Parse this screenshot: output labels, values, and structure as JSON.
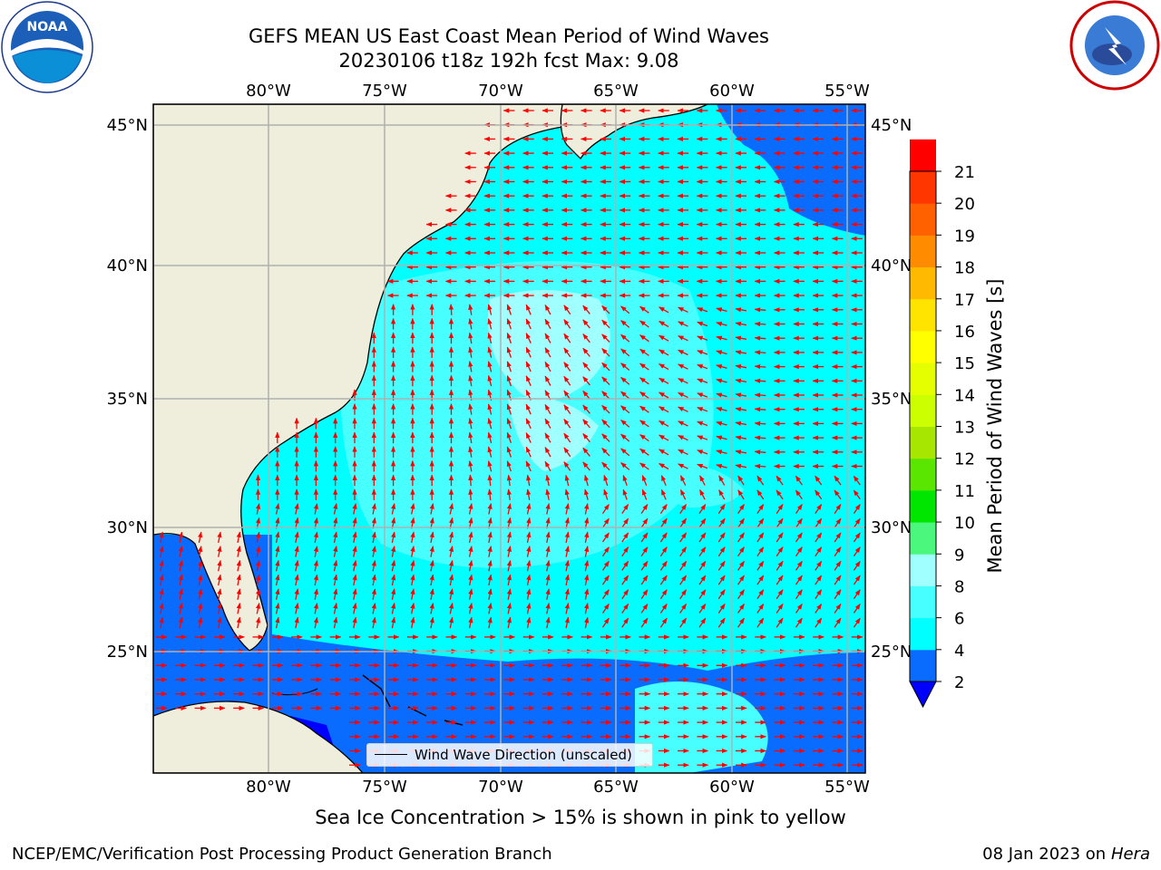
{
  "header": {
    "title_line1": "GEFS MEAN US East Coast Mean Period of Wind Waves",
    "title_line2": "20230106 t18z 192h fcst   Max: 9.08"
  },
  "logos": {
    "left": {
      "icon": "noaa-logo",
      "text": "NOAA"
    },
    "right": {
      "icon": "nws-logo"
    }
  },
  "map": {
    "lon_labels": [
      "80°W",
      "75°W",
      "70°W",
      "65°W",
      "60°W",
      "55°W"
    ],
    "lat_labels": [
      "45°N",
      "40°N",
      "35°N",
      "30°N",
      "25°N"
    ],
    "land_color": "#efeedc",
    "grid_color": "#b0b0b0",
    "arrow_color": "#ff0000",
    "legend_text": "Wind Wave Direction (unscaled)"
  },
  "colorbar": {
    "label": "Mean Period of Wind Waves [s]",
    "tick_labels": [
      "2",
      "4",
      "6",
      "8",
      "9",
      "10",
      "11",
      "12",
      "13",
      "14",
      "15",
      "16",
      "17",
      "18",
      "19",
      "20",
      "21"
    ],
    "colors": [
      "#0a6cff",
      "#00ffff",
      "#48ffff",
      "#a0ffff",
      "#4cf77d",
      "#00e600",
      "#5ae600",
      "#a6e600",
      "#ccff00",
      "#e6ff00",
      "#ffff00",
      "#ffe400",
      "#ffba00",
      "#ff8c00",
      "#ff6000",
      "#ff3600",
      "#ff0000"
    ],
    "extend_color": "#0000ff"
  },
  "caption": "Sea Ice Concentration > 15% is shown in pink to yellow",
  "footer": {
    "left": "NCEP/EMC/Verification Post Processing Product Generation Branch",
    "right_date": "08 Jan 2023 on",
    "right_host": "Hera"
  }
}
